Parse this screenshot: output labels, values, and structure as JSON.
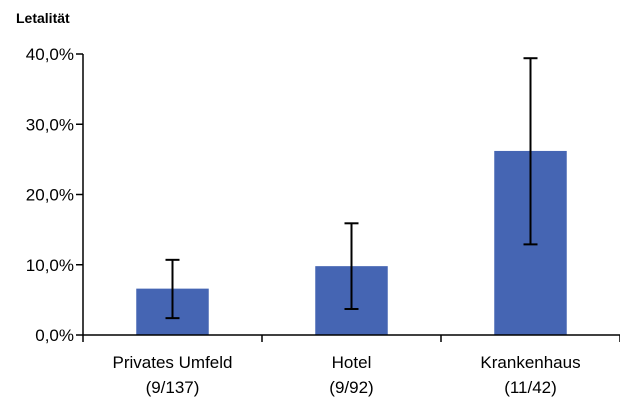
{
  "chart_data": {
    "type": "bar",
    "ylabel": "Letalität",
    "categories": [
      "Privates Umfeld",
      "Hotel",
      "Krankenhaus"
    ],
    "category_sublabels": [
      "(9/137)",
      "(9/92)",
      "(11/42)"
    ],
    "values": [
      6.6,
      9.8,
      26.2
    ],
    "error_low": [
      2.4,
      3.7,
      12.9
    ],
    "error_high": [
      10.7,
      15.9,
      39.4
    ],
    "ylim": [
      0,
      40
    ],
    "yticks": [
      0,
      10,
      20,
      30,
      40
    ],
    "ytick_labels": [
      "0,0%",
      "10,0%",
      "20,0%",
      "30,0%",
      "40,0%"
    ],
    "bar_color": "#4565b3",
    "grid": false,
    "legend": "none"
  }
}
